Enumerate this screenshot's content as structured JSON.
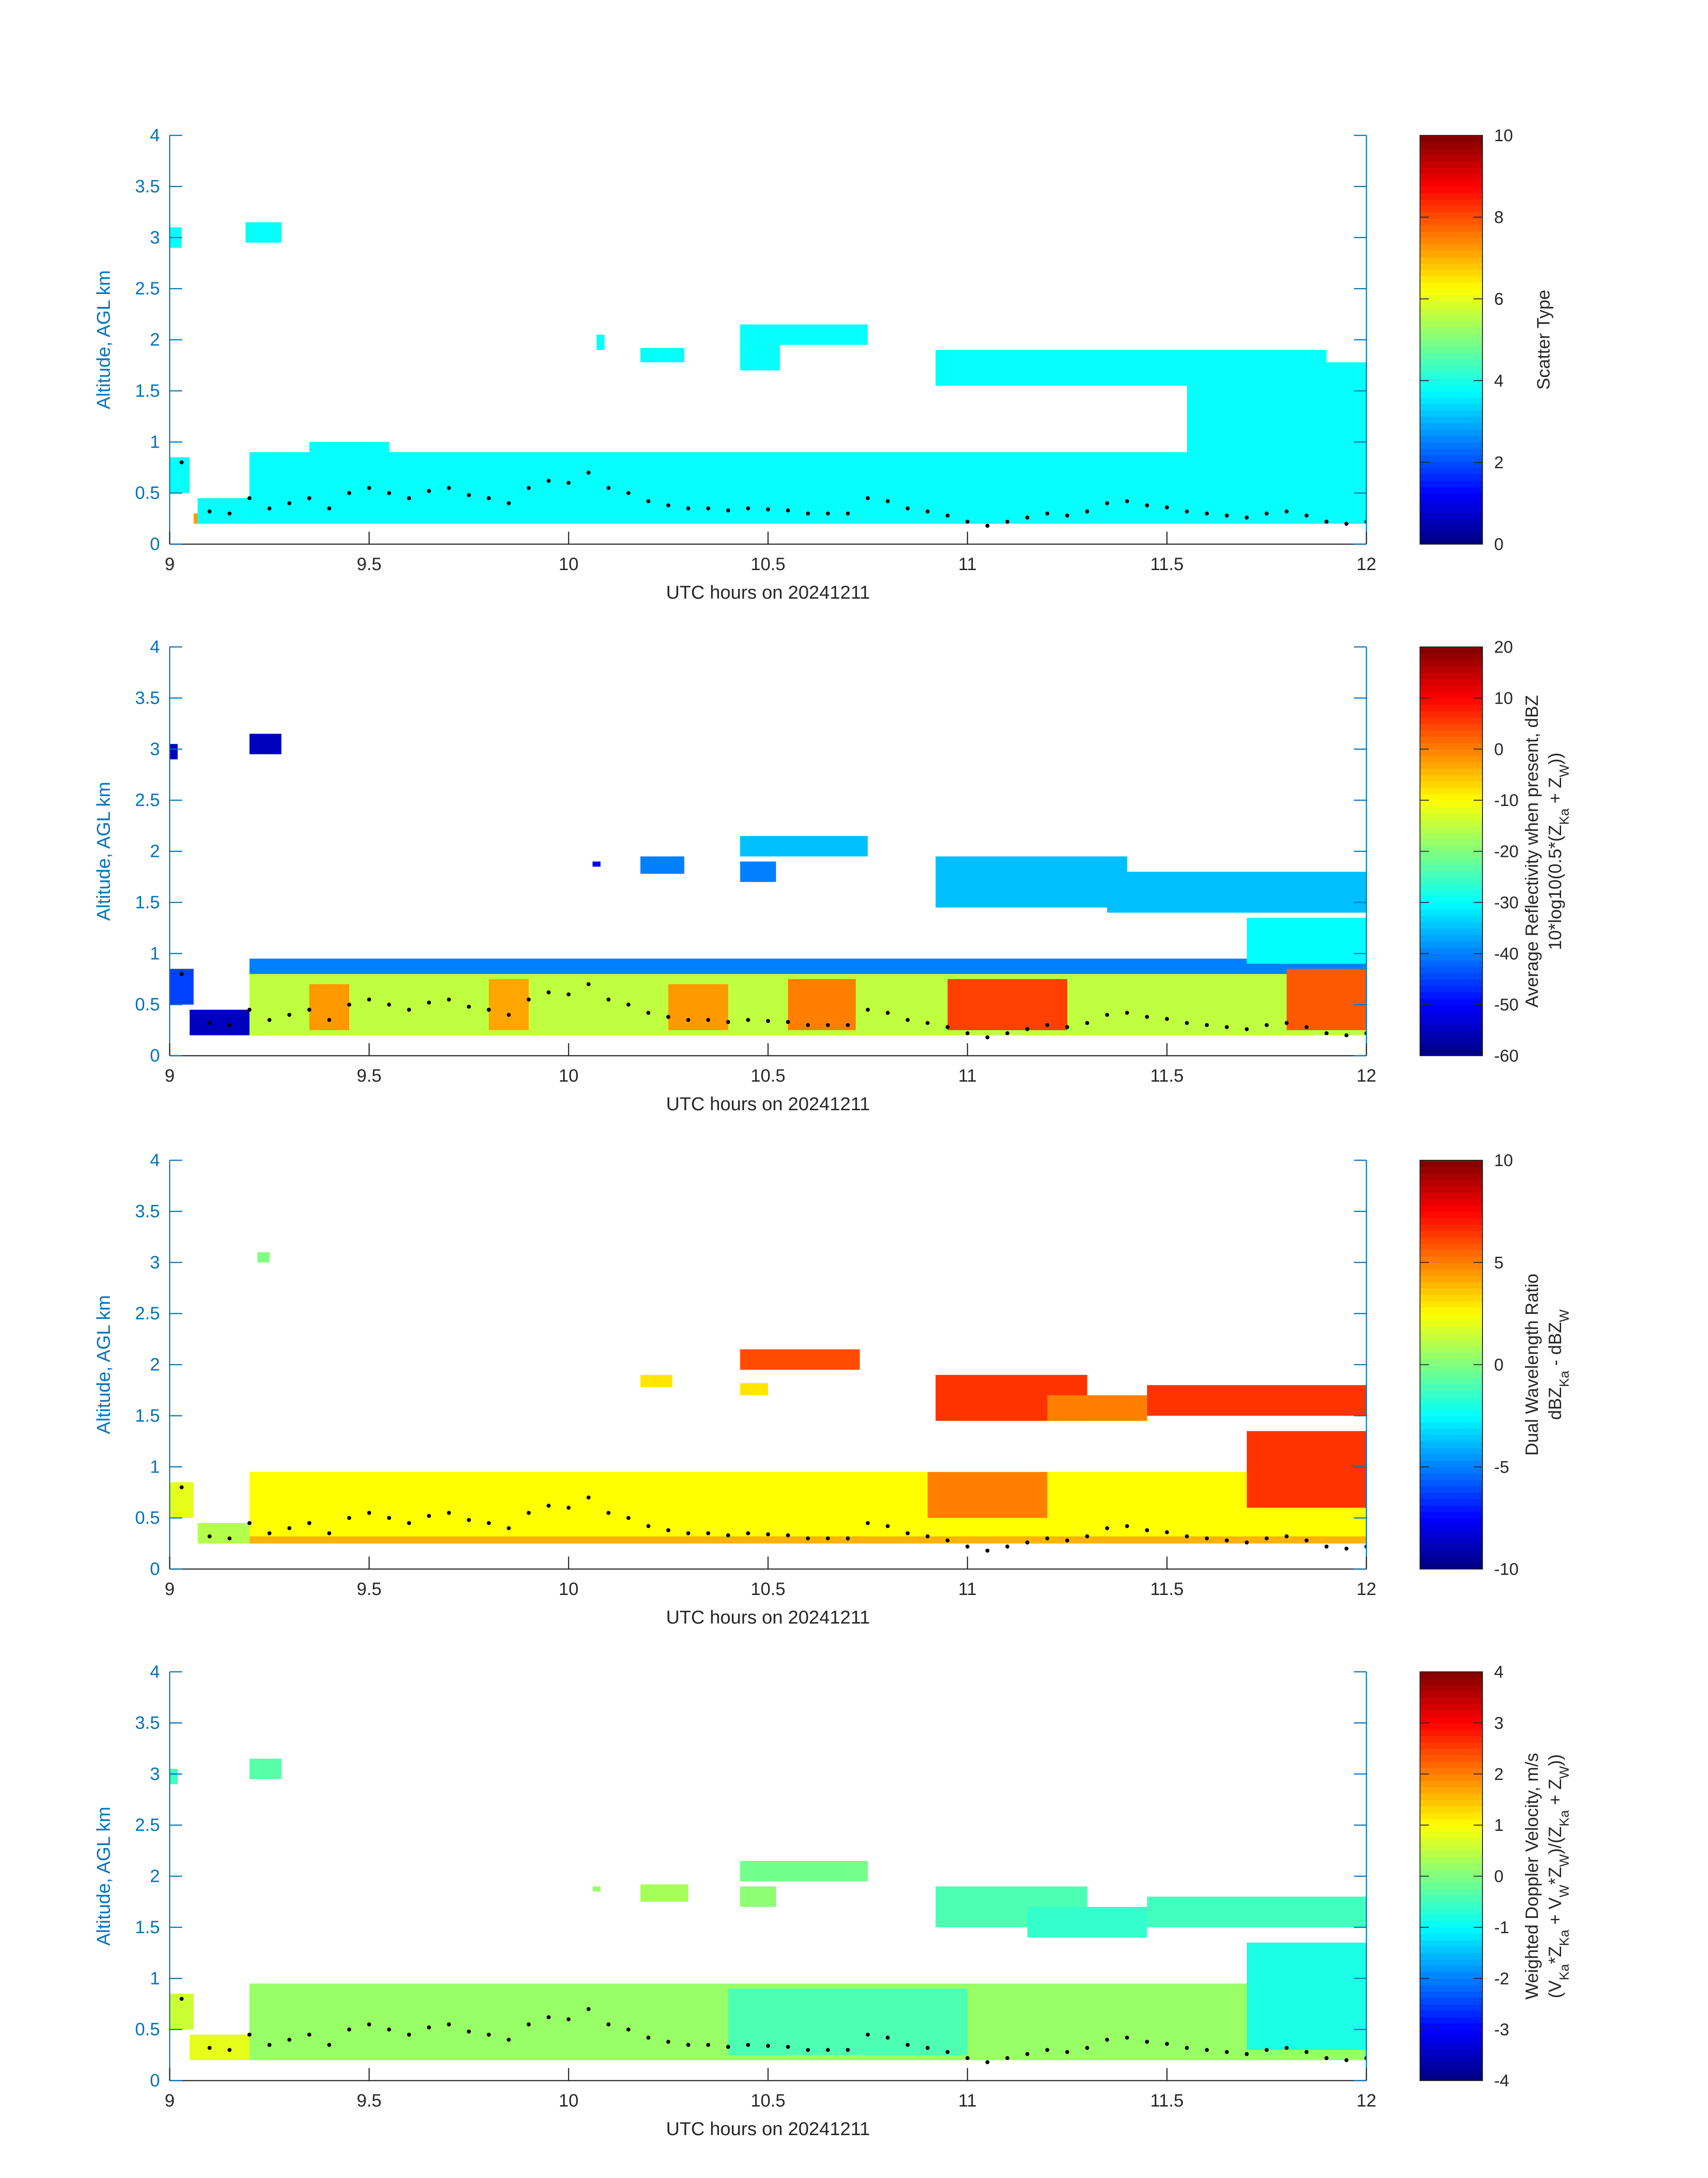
{
  "chart_data": [
    {
      "type": "heatmap",
      "ylabel": "Altitude, AGL km",
      "xlabel": "UTC hours on 20241211",
      "xlim": [
        9,
        12
      ],
      "ylim": [
        0,
        4
      ],
      "xticks": [
        9,
        9.5,
        10,
        10.5,
        11,
        11.5,
        12
      ],
      "yticks": [
        0,
        0.5,
        1,
        1.5,
        2,
        2.5,
        3,
        3.5,
        4
      ],
      "colorbar": {
        "label_lines": [
          "Scatter Type"
        ],
        "clim": [
          0,
          10
        ],
        "ticks": [
          0,
          2,
          4,
          6,
          8,
          10
        ],
        "colormap": "jet"
      },
      "regions": [
        {
          "x": [
            9.0,
            9.05
          ],
          "y": [
            0.5,
            0.85
          ],
          "v": 3.8
        },
        {
          "x": [
            9.0,
            9.03
          ],
          "y": [
            2.9,
            3.1
          ],
          "v": 3.8
        },
        {
          "x": [
            9.19,
            9.28
          ],
          "y": [
            2.95,
            3.15
          ],
          "v": 3.8
        },
        {
          "x": [
            9.07,
            9.2
          ],
          "y": [
            0.2,
            0.45
          ],
          "v": 3.8
        },
        {
          "x": [
            9.2,
            12.0
          ],
          "y": [
            0.2,
            0.9
          ],
          "v": 3.8
        },
        {
          "x": [
            9.35,
            9.55
          ],
          "y": [
            0.85,
            1.0
          ],
          "v": 3.8
        },
        {
          "x": [
            10.07,
            10.09
          ],
          "y": [
            1.9,
            2.05
          ],
          "v": 3.8
        },
        {
          "x": [
            10.18,
            10.29
          ],
          "y": [
            1.78,
            1.92
          ],
          "v": 3.8
        },
        {
          "x": [
            10.43,
            10.75
          ],
          "y": [
            1.95,
            2.15
          ],
          "v": 3.8
        },
        {
          "x": [
            10.43,
            10.53
          ],
          "y": [
            1.7,
            1.95
          ],
          "v": 3.8
        },
        {
          "x": [
            10.92,
            11.9
          ],
          "y": [
            1.55,
            1.9
          ],
          "v": 3.8
        },
        {
          "x": [
            11.35,
            12.0
          ],
          "y": [
            1.6,
            1.78
          ],
          "v": 3.8
        },
        {
          "x": [
            11.55,
            12.0
          ],
          "y": [
            0.85,
            1.6
          ],
          "v": 3.8
        },
        {
          "x": [
            9.06,
            9.07
          ],
          "y": [
            0.2,
            0.3
          ],
          "v": 7.2
        }
      ]
    },
    {
      "type": "heatmap",
      "ylabel": "Altitude, AGL km",
      "xlabel": "UTC hours on 20241211",
      "xlim": [
        9,
        12
      ],
      "ylim": [
        0,
        4
      ],
      "xticks": [
        9,
        9.5,
        10,
        10.5,
        11,
        11.5,
        12
      ],
      "yticks": [
        0,
        0.5,
        1,
        1.5,
        2,
        2.5,
        3,
        3.5,
        4
      ],
      "colorbar": {
        "label_lines": [
          "Average Reflectivity when present, dBZ",
          "10*log10(0.5*(Z_Ka + Z_W))"
        ],
        "clim": [
          -60,
          20
        ],
        "ticks": [
          -60,
          -50,
          -40,
          -30,
          -20,
          -10,
          0,
          10,
          20
        ],
        "colormap": "jet"
      },
      "regions": [
        {
          "x": [
            9.0,
            9.06
          ],
          "y": [
            0.5,
            0.85
          ],
          "v": -45
        },
        {
          "x": [
            9.0,
            9.02
          ],
          "y": [
            2.9,
            3.05
          ],
          "v": -55
        },
        {
          "x": [
            9.2,
            9.28
          ],
          "y": [
            2.95,
            3.15
          ],
          "v": -55
        },
        {
          "x": [
            9.05,
            9.25
          ],
          "y": [
            0.2,
            0.45
          ],
          "v": -55
        },
        {
          "x": [
            9.2,
            12.0
          ],
          "y": [
            0.2,
            0.9
          ],
          "v": -15
        },
        {
          "x": [
            9.2,
            12.0
          ],
          "y": [
            0.8,
            0.95
          ],
          "v": -40
        },
        {
          "x": [
            9.35,
            9.45
          ],
          "y": [
            0.25,
            0.7
          ],
          "v": -2
        },
        {
          "x": [
            9.8,
            9.9
          ],
          "y": [
            0.25,
            0.75
          ],
          "v": -3
        },
        {
          "x": [
            10.25,
            10.4
          ],
          "y": [
            0.25,
            0.7
          ],
          "v": -2
        },
        {
          "x": [
            10.55,
            10.72
          ],
          "y": [
            0.25,
            0.75
          ],
          "v": 0
        },
        {
          "x": [
            10.95,
            11.25
          ],
          "y": [
            0.25,
            0.75
          ],
          "v": 5
        },
        {
          "x": [
            11.8,
            12.0
          ],
          "y": [
            0.25,
            0.85
          ],
          "v": 3
        },
        {
          "x": [
            10.06,
            10.08
          ],
          "y": [
            1.85,
            1.9
          ],
          "v": -50
        },
        {
          "x": [
            10.18,
            10.29
          ],
          "y": [
            1.78,
            1.95
          ],
          "v": -40
        },
        {
          "x": [
            10.43,
            10.75
          ],
          "y": [
            1.95,
            2.15
          ],
          "v": -35
        },
        {
          "x": [
            10.43,
            10.52
          ],
          "y": [
            1.7,
            1.9
          ],
          "v": -40
        },
        {
          "x": [
            10.92,
            11.4
          ],
          "y": [
            1.45,
            1.95
          ],
          "v": -35
        },
        {
          "x": [
            11.35,
            12.0
          ],
          "y": [
            1.4,
            1.8
          ],
          "v": -35
        },
        {
          "x": [
            11.7,
            12.0
          ],
          "y": [
            0.9,
            1.35
          ],
          "v": -30
        }
      ]
    },
    {
      "type": "heatmap",
      "ylabel": "Altitude, AGL km",
      "xlabel": "UTC hours on 20241211",
      "xlim": [
        9,
        12
      ],
      "ylim": [
        0,
        4
      ],
      "xticks": [
        9,
        9.5,
        10,
        10.5,
        11,
        11.5,
        12
      ],
      "yticks": [
        0,
        0.5,
        1,
        1.5,
        2,
        2.5,
        3,
        3.5,
        4
      ],
      "colorbar": {
        "label_lines": [
          "Dual Wavelength Ratio",
          "dBZ_Ka - dBZ_W"
        ],
        "clim": [
          -10,
          10
        ],
        "ticks": [
          -10,
          -5,
          0,
          5,
          10
        ],
        "colormap": "jet"
      },
      "regions": [
        {
          "x": [
            9.0,
            9.06
          ],
          "y": [
            0.5,
            0.85
          ],
          "v": 2
        },
        {
          "x": [
            9.22,
            9.25
          ],
          "y": [
            3.0,
            3.1
          ],
          "v": 0
        },
        {
          "x": [
            9.07,
            9.2
          ],
          "y": [
            0.25,
            0.45
          ],
          "v": 1
        },
        {
          "x": [
            9.2,
            12.0
          ],
          "y": [
            0.3,
            0.95
          ],
          "v": 2.5
        },
        {
          "x": [
            9.2,
            12.0
          ],
          "y": [
            0.25,
            0.32
          ],
          "v": 4
        },
        {
          "x": [
            10.9,
            11.2
          ],
          "y": [
            0.5,
            0.95
          ],
          "v": 5
        },
        {
          "x": [
            11.7,
            12.0
          ],
          "y": [
            0.6,
            1.35
          ],
          "v": 6.5
        },
        {
          "x": [
            10.18,
            10.26
          ],
          "y": [
            1.78,
            1.9
          ],
          "v": 3
        },
        {
          "x": [
            10.43,
            10.73
          ],
          "y": [
            1.95,
            2.15
          ],
          "v": 6
        },
        {
          "x": [
            10.43,
            10.5
          ],
          "y": [
            1.7,
            1.82
          ],
          "v": 3
        },
        {
          "x": [
            10.92,
            11.3
          ],
          "y": [
            1.45,
            1.9
          ],
          "v": 6.5
        },
        {
          "x": [
            11.2,
            11.45
          ],
          "y": [
            1.45,
            1.7
          ],
          "v": 5
        },
        {
          "x": [
            11.45,
            12.0
          ],
          "y": [
            1.5,
            1.8
          ],
          "v": 6.5
        }
      ]
    },
    {
      "type": "heatmap",
      "ylabel": "Altitude, AGL km",
      "xlabel": "UTC hours on 20241211",
      "xlim": [
        9,
        12
      ],
      "ylim": [
        0,
        4
      ],
      "xticks": [
        9,
        9.5,
        10,
        10.5,
        11,
        11.5,
        12
      ],
      "yticks": [
        0,
        0.5,
        1,
        1.5,
        2,
        2.5,
        3,
        3.5,
        4
      ],
      "colorbar": {
        "label_lines": [
          "Weighted Doppler Velocity, m/s",
          "(V_Ka*Z_Ka + V_W*Z_W)/(Z_Ka + Z_W))"
        ],
        "clim": [
          -4,
          4
        ],
        "ticks": [
          -4,
          -3,
          -2,
          -1,
          0,
          1,
          2,
          3,
          4
        ],
        "colormap": "jet"
      },
      "regions": [
        {
          "x": [
            9.0,
            9.06
          ],
          "y": [
            0.5,
            0.85
          ],
          "v": 0.6
        },
        {
          "x": [
            9.0,
            9.02
          ],
          "y": [
            2.9,
            3.05
          ],
          "v": -0.5
        },
        {
          "x": [
            9.2,
            9.28
          ],
          "y": [
            2.95,
            3.15
          ],
          "v": -0.3
        },
        {
          "x": [
            9.05,
            9.25
          ],
          "y": [
            0.2,
            0.45
          ],
          "v": 0.8
        },
        {
          "x": [
            9.2,
            12.0
          ],
          "y": [
            0.2,
            0.95
          ],
          "v": 0.2
        },
        {
          "x": [
            10.4,
            11.0
          ],
          "y": [
            0.25,
            0.9
          ],
          "v": -0.4
        },
        {
          "x": [
            11.7,
            12.0
          ],
          "y": [
            0.3,
            1.35
          ],
          "v": -0.8
        },
        {
          "x": [
            10.06,
            10.08
          ],
          "y": [
            1.85,
            1.9
          ],
          "v": 0.2
        },
        {
          "x": [
            10.18,
            10.3
          ],
          "y": [
            1.75,
            1.92
          ],
          "v": 0.3
        },
        {
          "x": [
            10.43,
            10.75
          ],
          "y": [
            1.95,
            2.15
          ],
          "v": -0.1
        },
        {
          "x": [
            10.43,
            10.52
          ],
          "y": [
            1.7,
            1.9
          ],
          "v": 0.1
        },
        {
          "x": [
            10.92,
            11.3
          ],
          "y": [
            1.5,
            1.9
          ],
          "v": -0.4
        },
        {
          "x": [
            11.15,
            11.45
          ],
          "y": [
            1.4,
            1.7
          ],
          "v": -0.6
        },
        {
          "x": [
            11.45,
            12.0
          ],
          "y": [
            1.5,
            1.8
          ],
          "v": -0.5
        }
      ]
    }
  ],
  "cloud_base_dots": {
    "x": [
      9.03,
      9.1,
      9.15,
      9.2,
      9.25,
      9.3,
      9.35,
      9.4,
      9.45,
      9.5,
      9.55,
      9.6,
      9.65,
      9.7,
      9.75,
      9.8,
      9.85,
      9.9,
      9.95,
      10.0,
      10.05,
      10.1,
      10.15,
      10.2,
      10.25,
      10.3,
      10.35,
      10.4,
      10.45,
      10.5,
      10.55,
      10.6,
      10.65,
      10.7,
      10.75,
      10.8,
      10.85,
      10.9,
      10.95,
      11.0,
      11.05,
      11.1,
      11.15,
      11.2,
      11.25,
      11.3,
      11.35,
      11.4,
      11.45,
      11.5,
      11.55,
      11.6,
      11.65,
      11.7,
      11.75,
      11.8,
      11.85,
      11.9,
      11.95,
      12.0
    ],
    "y": [
      0.8,
      0.32,
      0.3,
      0.45,
      0.35,
      0.4,
      0.45,
      0.35,
      0.5,
      0.55,
      0.5,
      0.45,
      0.52,
      0.55,
      0.48,
      0.45,
      0.4,
      0.55,
      0.62,
      0.6,
      0.7,
      0.55,
      0.5,
      0.42,
      0.38,
      0.35,
      0.35,
      0.33,
      0.35,
      0.34,
      0.33,
      0.3,
      0.3,
      0.3,
      0.45,
      0.42,
      0.35,
      0.32,
      0.28,
      0.22,
      0.18,
      0.22,
      0.26,
      0.3,
      0.28,
      0.32,
      0.4,
      0.42,
      0.38,
      0.36,
      0.32,
      0.3,
      0.28,
      0.26,
      0.3,
      0.32,
      0.28,
      0.22,
      0.2,
      0.22
    ]
  }
}
